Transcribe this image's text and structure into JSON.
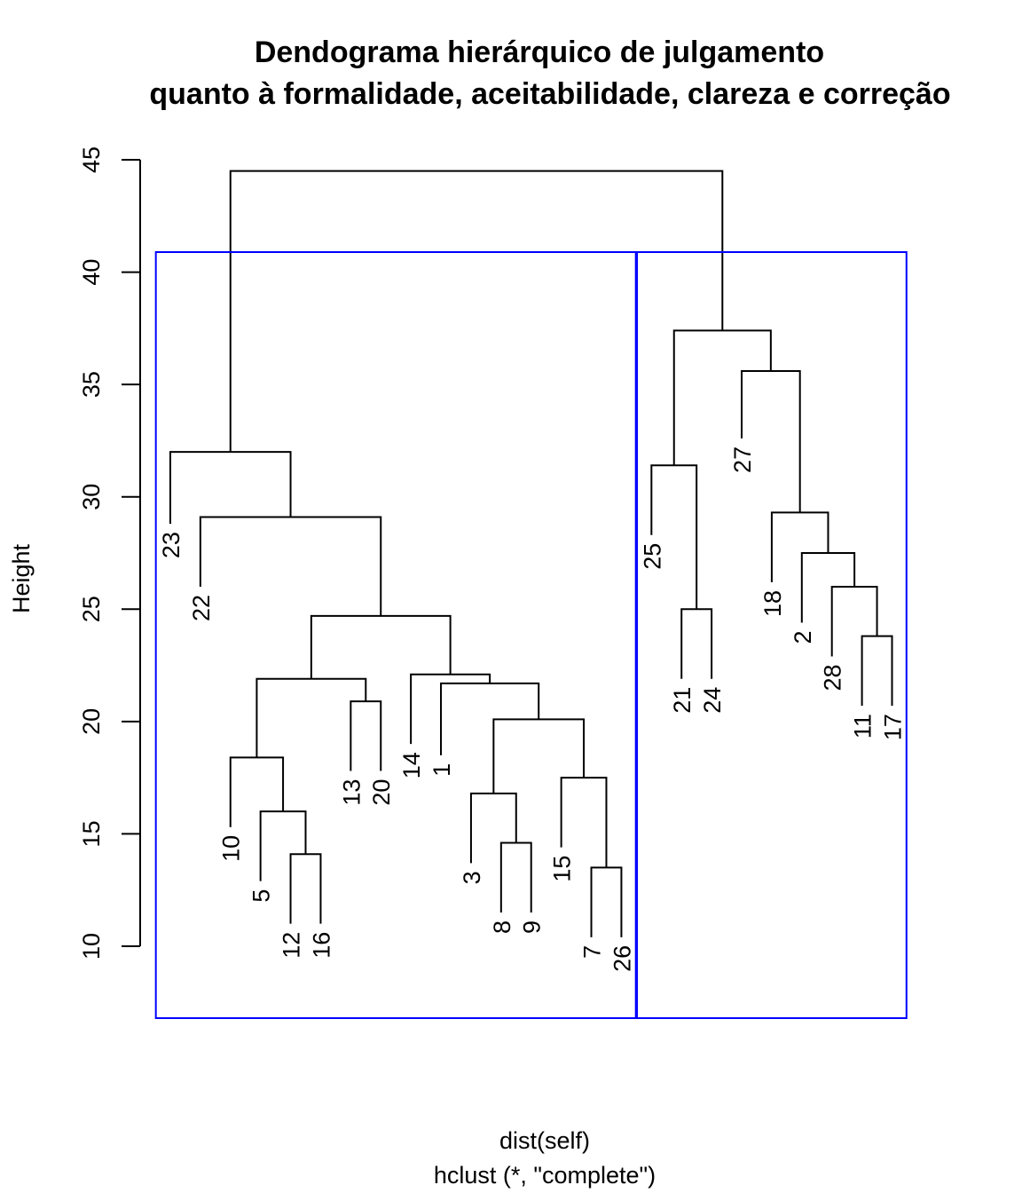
{
  "chart_data": {
    "type": "dendrogram",
    "title_line1": "Dendograma hierárquico de julgamento",
    "title_line2": "quanto à formalidade, aceitabilidade, clareza e correção",
    "ylabel": "Height",
    "xlabel": "dist(self)",
    "sublabel": "hclust (*, \"complete\")",
    "ylim": [
      10,
      45
    ],
    "yticks": [
      10,
      15,
      20,
      25,
      30,
      35,
      40,
      45
    ],
    "leaf_order": [
      "23",
      "22",
      "10",
      "5",
      "12",
      "16",
      "13",
      "20",
      "14",
      "1",
      "3",
      "8",
      "9",
      "15",
      "7",
      "26",
      "25",
      "21",
      "24",
      "27",
      "18",
      "2",
      "28",
      "11",
      "17"
    ],
    "merges": [
      {
        "a": "12",
        "b": "16",
        "height": 14.1
      },
      {
        "a": "7",
        "b": "26",
        "height": 13.5
      },
      {
        "a": "8",
        "b": "9",
        "height": 14.6
      },
      {
        "a": "11",
        "b": "17",
        "height": 23.8
      },
      {
        "a": "13",
        "b": "20",
        "height": 20.9
      },
      {
        "a": "21",
        "b": "24",
        "height": 25.0
      },
      {
        "a": "5",
        "b": "m0",
        "height": 16.0
      },
      {
        "a": "10",
        "b": "m6",
        "height": 18.4
      },
      {
        "a": "3",
        "b": "m2",
        "height": 16.8
      },
      {
        "a": "15",
        "b": "m1",
        "height": 17.5
      },
      {
        "a": "m8",
        "b": "m9",
        "height": 20.1
      },
      {
        "a": "m7",
        "b": "m4",
        "height": 21.9
      },
      {
        "a": "1",
        "b": "m10",
        "height": 21.7
      },
      {
        "a": "14",
        "b": "m12",
        "height": 22.1
      },
      {
        "a": "m11",
        "b": "m13",
        "height": 24.7
      },
      {
        "a": "22",
        "b": "m14",
        "height": 29.1
      },
      {
        "a": "23",
        "b": "m15",
        "height": 32.0
      },
      {
        "a": "28",
        "b": "m3",
        "height": 26.0
      },
      {
        "a": "2",
        "b": "m17",
        "height": 27.5
      },
      {
        "a": "18",
        "b": "m18",
        "height": 29.3
      },
      {
        "a": "27",
        "b": "m19",
        "height": 35.6
      },
      {
        "a": "25",
        "b": "m5",
        "height": 31.4
      },
      {
        "a": "m21",
        "b": "m20",
        "height": 37.4
      },
      {
        "a": "m16",
        "b": "m22",
        "height": 44.5
      }
    ],
    "leaf_top_heights": {
      "23": 28.8,
      "22": 26.0,
      "10": 15.3,
      "5": 12.9,
      "12": 11.0,
      "16": 11.0,
      "13": 17.8,
      "20": 17.8,
      "14": 19.0,
      "1": 18.5,
      "3": 13.7,
      "8": 11.5,
      "9": 11.5,
      "15": 14.4,
      "7": 10.4,
      "26": 10.4,
      "25": 28.3,
      "21": 21.9,
      "24": 21.9,
      "27": 32.6,
      "18": 26.2,
      "2": 24.4,
      "28": 22.9,
      "11": 20.7,
      "17": 20.7
    },
    "cluster_boxes": [
      {
        "from": "23",
        "to": "26",
        "color": "#0000ff"
      },
      {
        "from": "25",
        "to": "17",
        "color": "#0000ff"
      }
    ],
    "line_color": "#000000",
    "grid": false
  }
}
